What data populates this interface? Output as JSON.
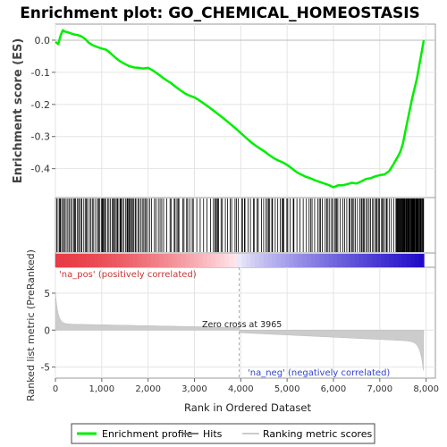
{
  "chart_data": {
    "type": "line",
    "title": "Enrichment plot: GO_CHEMICAL_HOMEOSTASIS",
    "xlabel": "Rank in Ordered Dataset",
    "es_ylabel": "Enrichment score (ES)",
    "metric_ylabel": "Ranked list metric (PreRanked)",
    "xlim": [
      0,
      8200
    ],
    "x_ticks": [
      0,
      1000,
      2000,
      3000,
      4000,
      5000,
      6000,
      7000,
      8000
    ],
    "x_tick_labels": [
      "0",
      "1,000",
      "2,000",
      "3,000",
      "4,000",
      "5,000",
      "6,000",
      "7,000",
      "8,000"
    ],
    "es_ylim": [
      -0.49,
      0.05
    ],
    "es_ticks": [
      0.0,
      -0.1,
      -0.2,
      -0.3,
      -0.4
    ],
    "es_tick_labels": [
      "0.0",
      "-0.1",
      "-0.2",
      "-0.3",
      "-0.4"
    ],
    "metric_ylim": [
      -6.5,
      8.5
    ],
    "metric_ticks": [
      5,
      0,
      -5
    ],
    "metric_tick_labels": [
      "5",
      "0",
      "-5"
    ],
    "zero_cross_rank": 3965,
    "zero_cross_label": "Zero cross at 3965",
    "pos_label": "'na_pos' (positively correlated)",
    "neg_label": "'na_neg' (negatively correlated)",
    "enrichment_profile": {
      "name": "Enrichment profile",
      "color": "#00ee00",
      "x": [
        0,
        60,
        120,
        160,
        200,
        260,
        320,
        400,
        480,
        560,
        640,
        720,
        800,
        900,
        1000,
        1100,
        1200,
        1300,
        1400,
        1500,
        1600,
        1700,
        1800,
        1900,
        2000,
        2100,
        2200,
        2300,
        2400,
        2500,
        2600,
        2700,
        2800,
        2900,
        3000,
        3100,
        3200,
        3300,
        3400,
        3500,
        3600,
        3700,
        3800,
        3900,
        4000,
        4100,
        4200,
        4300,
        4400,
        4500,
        4600,
        4700,
        4800,
        4900,
        5000,
        5100,
        5200,
        5300,
        5400,
        5500,
        5600,
        5700,
        5800,
        5900,
        6000,
        6100,
        6200,
        6300,
        6400,
        6500,
        6600,
        6700,
        6800,
        6900,
        7000,
        7100,
        7200,
        7300,
        7400,
        7450,
        7500,
        7550,
        7600,
        7650,
        7700,
        7750,
        7800,
        7850,
        7900,
        7950
      ],
      "y": [
        -0.005,
        -0.012,
        0.018,
        0.031,
        0.027,
        0.025,
        0.022,
        0.018,
        0.016,
        0.012,
        0.004,
        -0.008,
        -0.015,
        -0.021,
        -0.026,
        -0.03,
        -0.042,
        -0.055,
        -0.066,
        -0.074,
        -0.081,
        -0.085,
        -0.086,
        -0.088,
        -0.086,
        -0.094,
        -0.104,
        -0.115,
        -0.125,
        -0.134,
        -0.146,
        -0.156,
        -0.166,
        -0.173,
        -0.178,
        -0.187,
        -0.197,
        -0.207,
        -0.218,
        -0.229,
        -0.24,
        -0.252,
        -0.264,
        -0.276,
        -0.289,
        -0.302,
        -0.315,
        -0.326,
        -0.336,
        -0.345,
        -0.356,
        -0.366,
        -0.374,
        -0.38,
        -0.388,
        -0.399,
        -0.41,
        -0.418,
        -0.425,
        -0.43,
        -0.436,
        -0.441,
        -0.446,
        -0.451,
        -0.458,
        -0.452,
        -0.452,
        -0.448,
        -0.444,
        -0.446,
        -0.44,
        -0.432,
        -0.43,
        -0.424,
        -0.42,
        -0.418,
        -0.408,
        -0.385,
        -0.36,
        -0.345,
        -0.322,
        -0.285,
        -0.25,
        -0.215,
        -0.18,
        -0.15,
        -0.12,
        -0.08,
        -0.04,
        0.0
      ]
    },
    "legend": [
      {
        "name": "Enrichment profile",
        "color": "#00ee00"
      },
      {
        "name": "Hits",
        "color": "#777777"
      },
      {
        "name": "Ranking metric scores",
        "color": "#cccccc"
      }
    ]
  }
}
